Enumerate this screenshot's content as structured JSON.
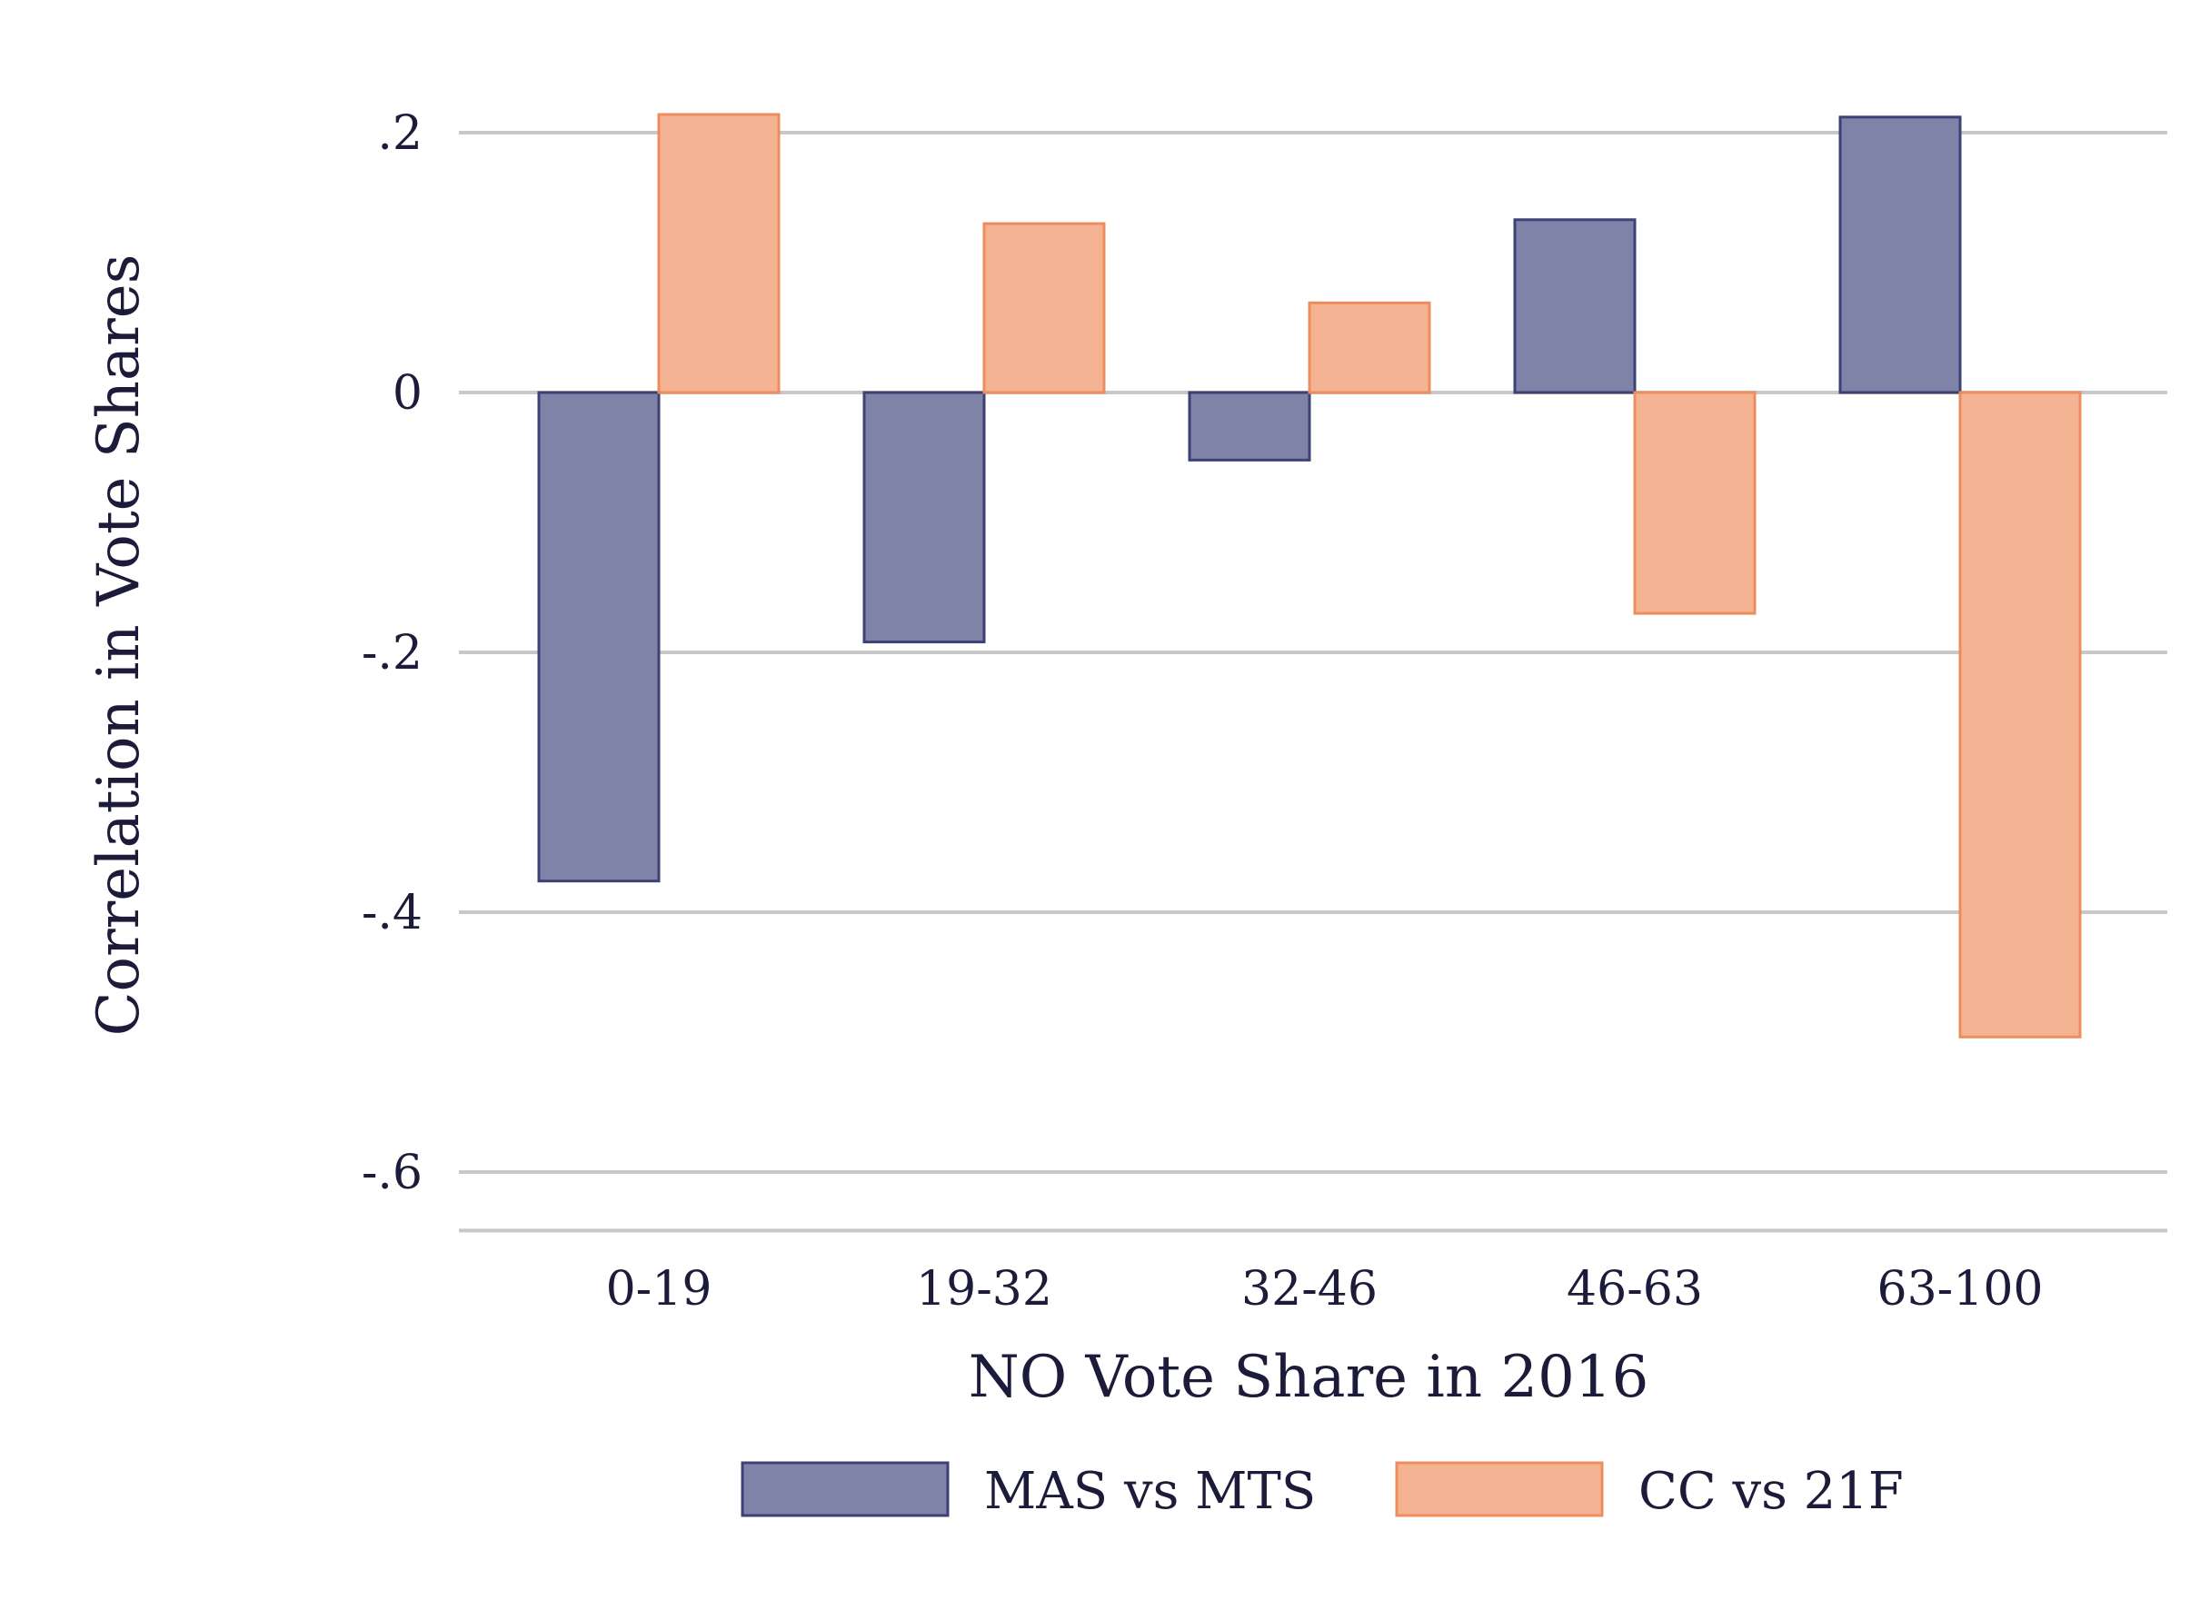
{
  "chart_data": {
    "type": "bar",
    "title": "",
    "xlabel": "NO Vote Share in 2016",
    "ylabel": "Correlation in Vote Shares",
    "categories": [
      "0-19",
      "19-32",
      "32-46",
      "46-63",
      "63-100"
    ],
    "series": [
      {
        "name": "MAS vs MTS",
        "values": [
          -0.376,
          -0.192,
          -0.052,
          0.133,
          0.212
        ],
        "color": "#8083a8",
        "stroke": "#3e4175"
      },
      {
        "name": "CC vs 21F",
        "values": [
          0.214,
          0.13,
          0.069,
          -0.17,
          -0.496
        ],
        "color": "#f4b494",
        "stroke": "#ef8c5d"
      }
    ],
    "yticks": [
      0.2,
      0,
      -0.2,
      -0.4,
      -0.6
    ],
    "ytick_labels": [
      ".2",
      "0",
      "-.2",
      "-.4",
      "-.6"
    ],
    "ylim": [
      -0.645,
      0.23
    ],
    "grid": true,
    "legend_position": "bottom"
  }
}
